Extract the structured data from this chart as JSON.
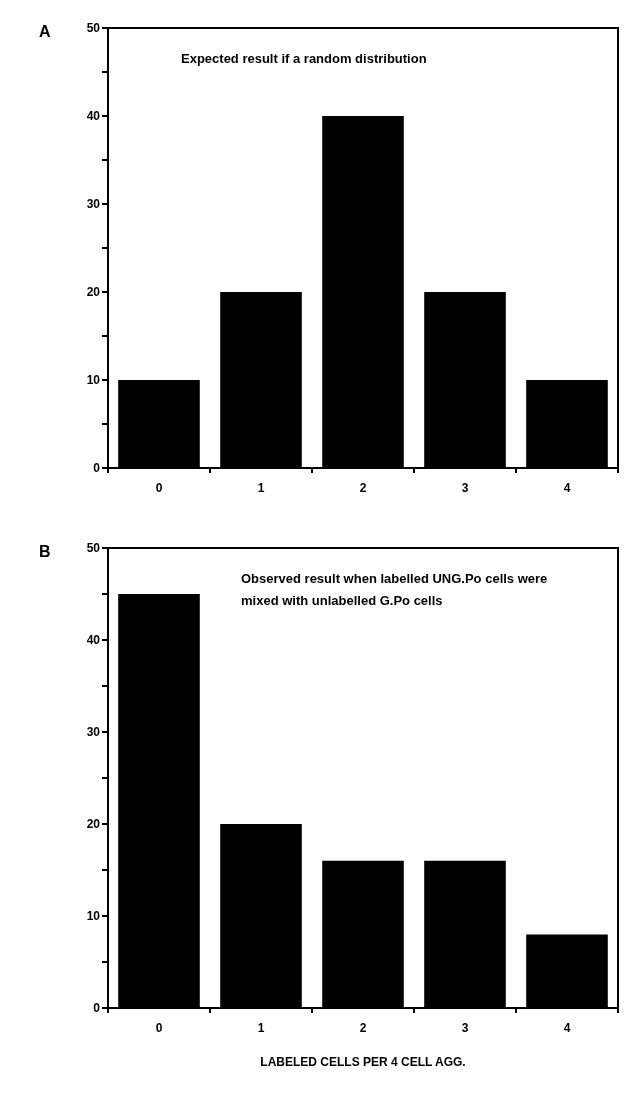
{
  "chart_data": [
    {
      "type": "bar",
      "title": "A",
      "categories": [
        "0",
        "1",
        "2",
        "3",
        "4"
      ],
      "values": [
        10,
        20,
        40,
        20,
        10
      ],
      "color": "#000000",
      "ylim": [
        0,
        50
      ],
      "yticks": [
        0,
        {
          "value": 5,
          "label": null
        },
        10,
        {
          "value": 15,
          "label": null
        },
        20,
        {
          "value": 25,
          "label": null
        },
        30,
        {
          "value": 35,
          "label": null
        },
        40,
        {
          "value": 45,
          "label": null
        },
        50
      ],
      "grid": false,
      "annotations": [
        "Expected result if a random distribution"
      ]
    },
    {
      "type": "bar",
      "title": "B",
      "categories": [
        "0",
        "1",
        "2",
        "3",
        "4"
      ],
      "values": [
        45,
        20,
        16,
        16,
        8
      ],
      "color": "#000000",
      "ylim": [
        0,
        50
      ],
      "yticks": [
        0,
        {
          "value": 5,
          "label": null
        },
        10,
        {
          "value": 15,
          "label": null
        },
        20,
        {
          "value": 25,
          "label": null
        },
        30,
        {
          "value": 35,
          "label": null
        },
        40,
        {
          "value": 45,
          "label": null
        },
        50
      ],
      "grid": false,
      "xlabel": "LABELED CELLS PER 4 CELL AGG.",
      "annotations": [
        "Observed result when labelled UNG.Po cells were mixed with unlabelled G.Po cells"
      ]
    }
  ]
}
